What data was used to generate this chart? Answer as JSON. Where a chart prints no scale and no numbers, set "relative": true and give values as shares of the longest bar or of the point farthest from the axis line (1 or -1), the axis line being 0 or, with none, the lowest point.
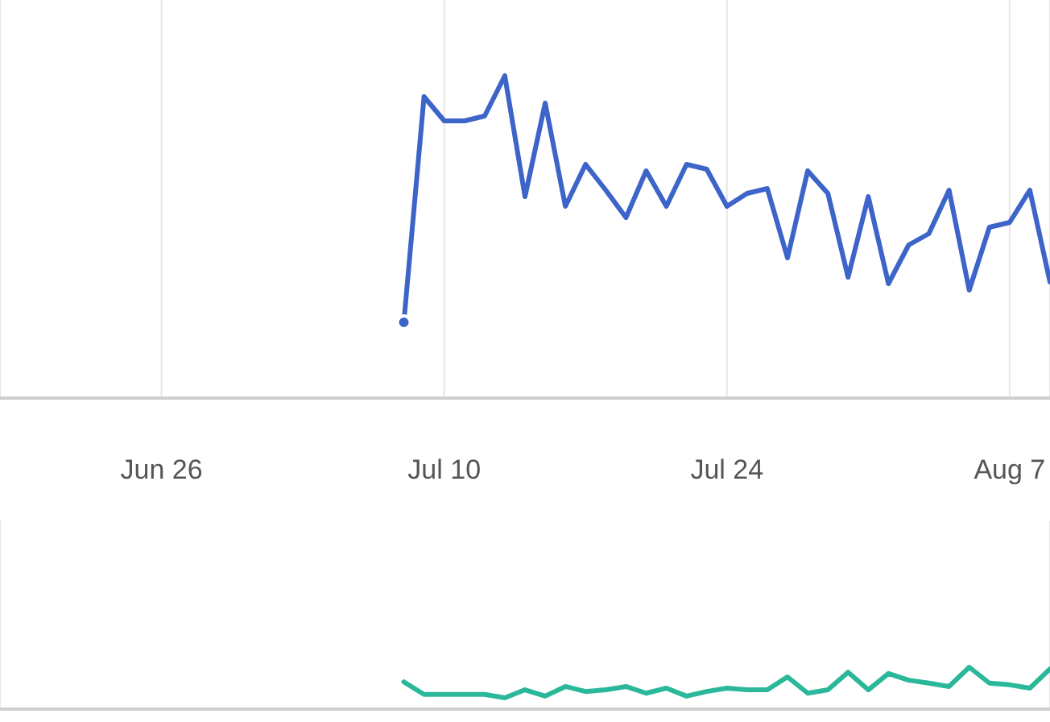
{
  "chart_data": [
    {
      "type": "line",
      "relative": true,
      "grid": "x",
      "legend": false,
      "marker": "none",
      "line_style": "solid",
      "xlim": [
        "--06-18",
        "--08-09"
      ],
      "xticks": [
        {
          "value": "--06-26",
          "label": "Jun 26"
        },
        {
          "value": "--07-10",
          "label": "Jul 10"
        },
        {
          "value": "--07-24",
          "label": "Jul 24"
        },
        {
          "value": "--08-07",
          "label": "Aug 7"
        }
      ],
      "x": [
        "--07-08",
        "--07-09",
        "--07-10",
        "--07-11",
        "--07-12",
        "--07-13",
        "--07-14",
        "--07-15",
        "--07-16",
        "--07-17",
        "--07-18",
        "--07-19",
        "--07-20",
        "--07-21",
        "--07-22",
        "--07-23",
        "--07-24",
        "--07-25",
        "--07-26",
        "--07-27",
        "--07-28",
        "--07-29",
        "--07-30",
        "--07-31",
        "--08-01",
        "--08-02",
        "--08-03",
        "--08-04",
        "--08-05",
        "--08-06",
        "--08-07",
        "--08-08",
        "--08-09"
      ],
      "series": [
        {
          "color": "#3d64c8",
          "values": [
            0.235,
            0.935,
            0.86,
            0.86,
            0.875,
            1,
            0.625,
            0.915,
            0.595,
            0.725,
            0.645,
            0.56,
            0.705,
            0.595,
            0.725,
            0.71,
            0.595,
            0.635,
            0.65,
            0.435,
            0.705,
            0.635,
            0.375,
            0.625,
            0.355,
            0.475,
            0.51,
            0.645,
            0.335,
            0.53,
            0.545,
            0.645,
            0.36
          ]
        }
      ]
    },
    {
      "type": "line",
      "relative": true,
      "grid": "x",
      "legend": false,
      "marker": "none",
      "line_style": "solid",
      "tick_labels": false,
      "xlim": [
        "--06-18",
        "--08-09"
      ],
      "xticks": [
        {
          "value": "--06-26",
          "label": null
        },
        {
          "value": "--07-10",
          "label": null
        },
        {
          "value": "--07-24",
          "label": null
        },
        {
          "value": "--08-07",
          "label": null
        }
      ],
      "x": [
        "--07-08",
        "--07-09",
        "--07-10",
        "--07-11",
        "--07-12",
        "--07-13",
        "--07-14",
        "--07-15",
        "--07-16",
        "--07-17",
        "--07-18",
        "--07-19",
        "--07-20",
        "--07-21",
        "--07-22",
        "--07-23",
        "--07-24",
        "--07-25",
        "--07-26",
        "--07-27",
        "--07-28",
        "--07-29",
        "--07-30",
        "--07-31",
        "--08-01",
        "--08-02",
        "--08-03",
        "--08-04",
        "--08-05",
        "--08-06",
        "--08-07",
        "--08-08",
        "--08-09"
      ],
      "series": [
        {
          "color": "#2bb89a",
          "values": [
            0.65,
            0.35,
            0.35,
            0.35,
            0.35,
            0.27,
            0.46,
            0.31,
            0.54,
            0.42,
            0.46,
            0.54,
            0.38,
            0.5,
            0.31,
            0.42,
            0.5,
            0.46,
            0.46,
            0.77,
            0.38,
            0.46,
            0.88,
            0.46,
            0.85,
            0.69,
            0.62,
            0.54,
            1,
            0.62,
            0.58,
            0.5,
            0.96
          ]
        }
      ]
    }
  ]
}
